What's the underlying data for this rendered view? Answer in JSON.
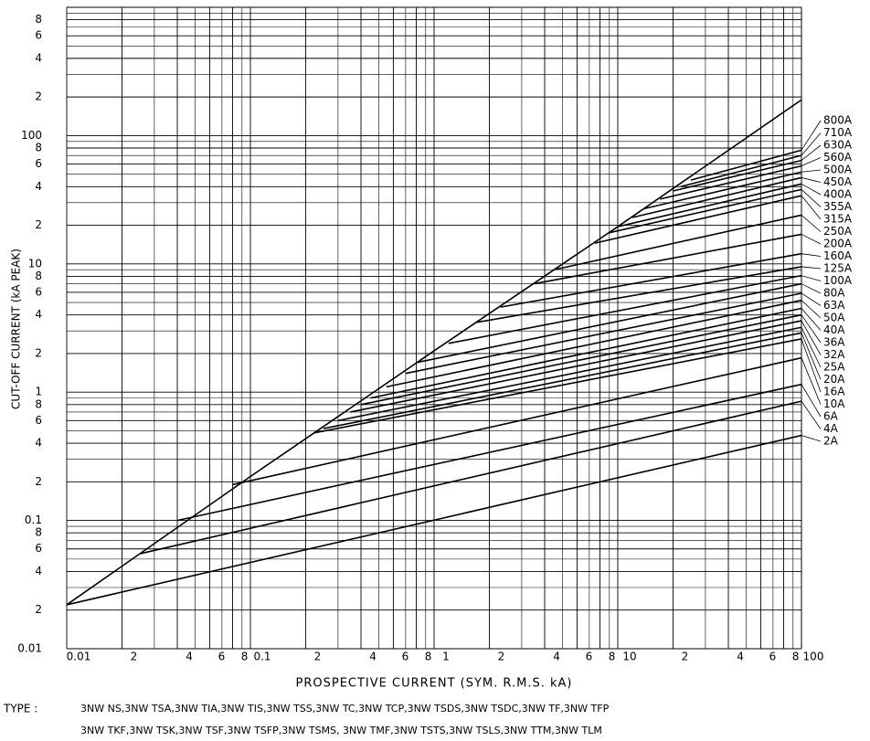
{
  "chart_data": {
    "type": "line",
    "xlabel": "PROSPECTIVE CURRENT (SYM. R.M.S. kA)",
    "ylabel": "CUT-OFF CURRENT (kA PEAK)",
    "type_label": "TYPE :",
    "type_lines": [
      "3NW NS,3NW TSA,3NW TIA,3NW TIS,3NW TSS,3NW TC,3NW TCP,3NW TSDS,3NW TSDC,3NW TF,3NW TFP",
      "3NW TKF,3NW TSK,3NW TSF,3NW TSFP,3NW TSMS, 3NW TMF,3NW TSTS,3NW TSLS,3NW TTM,3NW TLM"
    ],
    "xscale": "log",
    "yscale": "log",
    "grid": true,
    "color": "#000000",
    "xlim": [
      0.01,
      100
    ],
    "ylim": [
      0.01,
      1000
    ],
    "xticks": [
      0.01,
      {
        "value": 0.02,
        "label": "2"
      },
      {
        "value": 0.04,
        "label": "4"
      },
      {
        "value": 0.06,
        "label": "6"
      },
      {
        "value": 0.08,
        "label": "8"
      },
      0.1,
      {
        "value": 0.2,
        "label": "2"
      },
      {
        "value": 0.4,
        "label": "4"
      },
      {
        "value": 0.6,
        "label": "6"
      },
      {
        "value": 0.8,
        "label": "8"
      },
      1,
      2,
      4,
      6,
      8,
      10,
      {
        "value": 20,
        "label": "2"
      },
      {
        "value": 40,
        "label": "4"
      },
      {
        "value": 60,
        "label": "6"
      },
      {
        "value": 80,
        "label": "8"
      },
      100
    ],
    "xminorticks": [
      0.03,
      0.05,
      0.07,
      0.09,
      0.3,
      0.5,
      0.7,
      0.9,
      3,
      5,
      7,
      9,
      30,
      50,
      70,
      90
    ],
    "yticks": [
      0.01,
      {
        "value": 0.02,
        "label": "2"
      },
      {
        "value": 0.04,
        "label": "4"
      },
      {
        "value": 0.06,
        "label": "6"
      },
      {
        "value": 0.08,
        "label": "8"
      },
      0.1,
      {
        "value": 0.2,
        "label": "2"
      },
      {
        "value": 0.4,
        "label": "4"
      },
      {
        "value": 0.6,
        "label": "6"
      },
      {
        "value": 0.8,
        "label": "8"
      },
      1,
      2,
      4,
      6,
      8,
      10,
      {
        "value": 20,
        "label": "2"
      },
      {
        "value": 40,
        "label": "4"
      },
      {
        "value": 60,
        "label": "6"
      },
      {
        "value": 80,
        "label": "8"
      },
      100,
      {
        "value": 200,
        "label": "2"
      },
      {
        "value": 400,
        "label": "4"
      },
      {
        "value": 600,
        "label": "6"
      },
      {
        "value": 800,
        "label": "8"
      }
    ],
    "yminorticks": [
      0.03,
      0.05,
      0.07,
      0.09,
      0.3,
      0.5,
      0.7,
      0.9,
      3,
      5,
      7,
      9,
      30,
      50,
      70,
      90,
      300,
      500,
      700,
      900
    ],
    "series": [
      {
        "x": [
          0.01,
          0.1,
          1,
          10,
          100
        ],
        "values": [
          0.022,
          0.22,
          2.1,
          19.5,
          190
        ]
      },
      {
        "name": "2A",
        "x": [
          0.01,
          100
        ],
        "values": [
          0.022,
          0.46
        ]
      },
      {
        "name": "4A",
        "x": [
          0.025,
          100
        ],
        "values": [
          0.055,
          0.85
        ]
      },
      {
        "name": "6A",
        "x": [
          0.04,
          100
        ],
        "values": [
          0.1,
          1.15
        ]
      },
      {
        "name": "10A",
        "x": [
          0.08,
          100
        ],
        "values": [
          0.19,
          1.85
        ]
      },
      {
        "name": "16A",
        "x": [
          0.22,
          100
        ],
        "values": [
          0.48,
          2.6
        ]
      },
      {
        "name": "20A",
        "x": [
          0.25,
          100
        ],
        "values": [
          0.52,
          2.9
        ]
      },
      {
        "name": "25A",
        "x": [
          0.3,
          100
        ],
        "values": [
          0.6,
          3.2
        ]
      },
      {
        "name": "32A",
        "x": [
          0.35,
          100
        ],
        "values": [
          0.7,
          3.6
        ]
      },
      {
        "name": "36A",
        "x": [
          0.4,
          100
        ],
        "values": [
          0.8,
          4.0
        ]
      },
      {
        "name": "40A",
        "x": [
          0.45,
          100
        ],
        "values": [
          0.9,
          4.5
        ]
      },
      {
        "name": "50A",
        "x": [
          0.55,
          100
        ],
        "values": [
          1.1,
          5.2
        ]
      },
      {
        "name": "63A",
        "x": [
          0.7,
          100
        ],
        "values": [
          1.4,
          5.9
        ]
      },
      {
        "name": "80A",
        "x": [
          0.8,
          100
        ],
        "values": [
          1.7,
          7.0
        ]
      },
      {
        "name": "100A",
        "x": [
          1.2,
          100
        ],
        "values": [
          2.4,
          8.1
        ]
      },
      {
        "name": "125A",
        "x": [
          1.7,
          100
        ],
        "values": [
          3.5,
          9.5
        ]
      },
      {
        "name": "160A",
        "x": [
          2.3,
          100
        ],
        "values": [
          4.6,
          12
        ]
      },
      {
        "name": "200A",
        "x": [
          3.5,
          100
        ],
        "values": [
          7.0,
          17
        ]
      },
      {
        "name": "250A",
        "x": [
          4.5,
          100
        ],
        "values": [
          9,
          24
        ]
      },
      {
        "name": "315A",
        "x": [
          7.5,
          100
        ],
        "values": [
          14.5,
          34
        ]
      },
      {
        "name": "355A",
        "x": [
          9,
          100
        ],
        "values": [
          17.5,
          38
        ]
      },
      {
        "name": "400A",
        "x": [
          10,
          100
        ],
        "values": [
          19.5,
          42
        ]
      },
      {
        "name": "450A",
        "x": [
          12,
          100
        ],
        "values": [
          23,
          47
        ]
      },
      {
        "name": "500A",
        "x": [
          14,
          100
        ],
        "values": [
          27,
          52
        ]
      },
      {
        "name": "560A",
        "x": [
          17,
          100
        ],
        "values": [
          32,
          58
        ]
      },
      {
        "name": "630A",
        "x": [
          20,
          100
        ],
        "values": [
          37,
          64
        ]
      },
      {
        "name": "710A",
        "x": [
          22,
          100
        ],
        "values": [
          40,
          70
        ]
      },
      {
        "name": "800A",
        "x": [
          25,
          100
        ],
        "values": [
          45,
          77
        ]
      }
    ]
  }
}
